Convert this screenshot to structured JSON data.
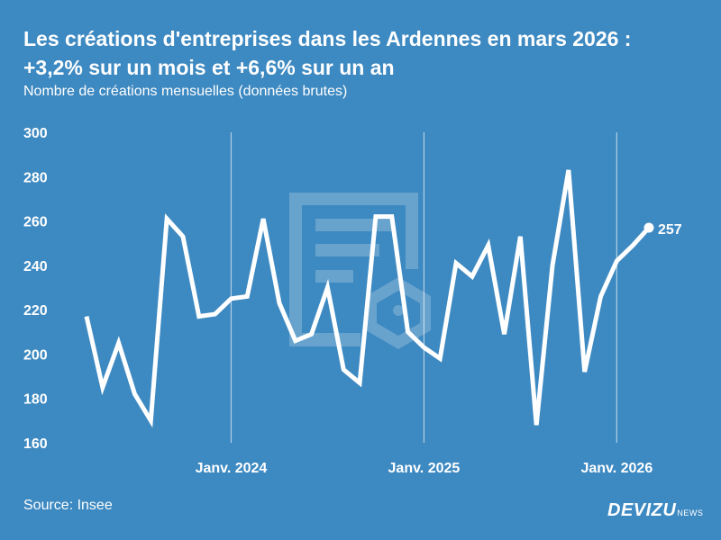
{
  "title_line1": "Les créations d'entreprises dans les Ardennes en mars 2026 :",
  "title_line2": "+3,2% sur un mois et +6,6% sur un an",
  "subtitle": "Nombre de créations mensuelles (données brutes)",
  "source": "Source: Insee",
  "logo": {
    "main": "DEVIZU",
    "suffix": "NEWS"
  },
  "colors": {
    "background": "#3d89c1",
    "line": "#ffffff"
  },
  "chart_data": {
    "type": "line",
    "title": "Les créations d'entreprises dans les Ardennes en mars 2026 : +3,2% sur un mois et +6,6% sur un an",
    "ylabel": "",
    "xlabel": "",
    "ylim": [
      160,
      300
    ],
    "yticks": [
      160,
      180,
      200,
      220,
      240,
      260,
      280,
      300
    ],
    "xticks": [
      {
        "x": "2024-01",
        "label": "Janv. 2024"
      },
      {
        "x": "2025-01",
        "label": "Janv. 2025"
      },
      {
        "x": "2026-01",
        "label": "Janv. 2026"
      }
    ],
    "grid": "vertical lines at January",
    "x": [
      "2023-04",
      "2023-05",
      "2023-06",
      "2023-07",
      "2023-08",
      "2023-09",
      "2023-10",
      "2023-11",
      "2023-12",
      "2024-01",
      "2024-02",
      "2024-03",
      "2024-04",
      "2024-05",
      "2024-06",
      "2024-07",
      "2024-08",
      "2024-09",
      "2024-10",
      "2024-11",
      "2024-12",
      "2025-01",
      "2025-02",
      "2025-03",
      "2025-04",
      "2025-05",
      "2025-06",
      "2025-07",
      "2025-08",
      "2025-09",
      "2025-10",
      "2025-11",
      "2025-12",
      "2026-01",
      "2026-02",
      "2026-03"
    ],
    "values": [
      217,
      185,
      205,
      182,
      170,
      261,
      253,
      217,
      218,
      225,
      226,
      261,
      223,
      206,
      209,
      230,
      193,
      187,
      262,
      262,
      210,
      203,
      198,
      241,
      235,
      249,
      209,
      253,
      168,
      240,
      283,
      192,
      226,
      242,
      249,
      257
    ],
    "last_label": "257"
  }
}
